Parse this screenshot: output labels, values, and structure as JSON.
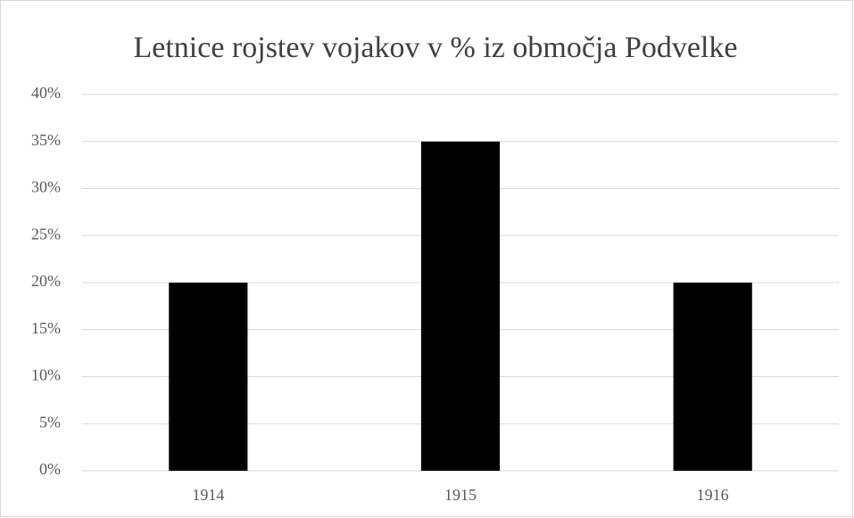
{
  "chart_data": {
    "type": "bar",
    "title": "Letnice rojstev vojakov v % iz območja Podvelke",
    "categories": [
      "1914",
      "1915",
      "1916"
    ],
    "values": [
      20,
      35,
      20
    ],
    "color": "#000000",
    "ylim": [
      0,
      40
    ],
    "yticks": [
      {
        "value": 0,
        "label": "0%"
      },
      {
        "value": 5,
        "label": "5%"
      },
      {
        "value": 10,
        "label": "10%"
      },
      {
        "value": 15,
        "label": "15%"
      },
      {
        "value": 20,
        "label": "20%"
      },
      {
        "value": 25,
        "label": "25%"
      },
      {
        "value": 30,
        "label": "30%"
      },
      {
        "value": 35,
        "label": "35%"
      },
      {
        "value": 40,
        "label": "40%"
      }
    ],
    "grid": true
  }
}
